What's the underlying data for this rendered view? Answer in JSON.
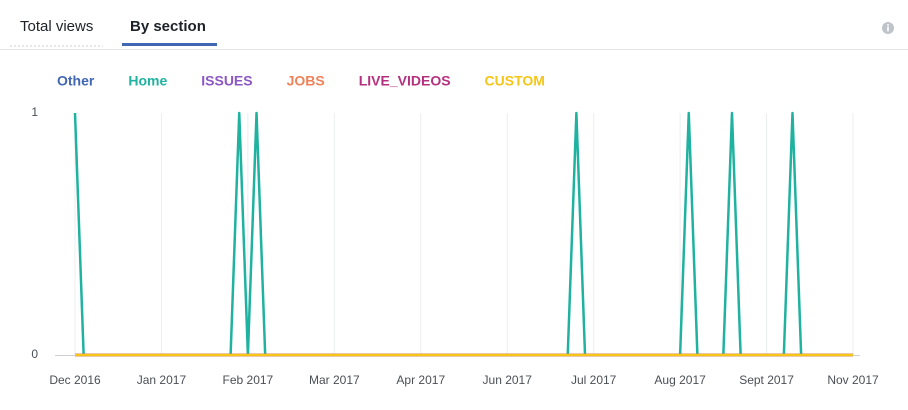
{
  "tabs": [
    "Total views",
    "By section"
  ],
  "chart_data": {
    "type": "line",
    "categories": [
      "Dec 2016",
      null,
      null,
      null,
      null,
      null,
      null,
      null,
      null,
      null,
      "Jan 2017",
      null,
      null,
      null,
      null,
      null,
      null,
      null,
      null,
      null,
      "Feb 2017",
      null,
      null,
      null,
      null,
      null,
      null,
      null,
      null,
      null,
      "Mar 2017",
      null,
      null,
      null,
      null,
      null,
      null,
      null,
      null,
      null,
      "Apr 2017",
      null,
      null,
      null,
      null,
      null,
      null,
      null,
      null,
      null,
      "Jun 2017",
      null,
      null,
      null,
      null,
      null,
      null,
      null,
      null,
      null,
      "Jul 2017",
      null,
      null,
      null,
      null,
      null,
      null,
      null,
      null,
      null,
      "Aug 2017",
      null,
      null,
      null,
      null,
      null,
      null,
      null,
      null,
      null,
      "Sept 2017",
      null,
      null,
      null,
      null,
      null,
      null,
      null,
      null,
      null,
      "Nov 2017"
    ],
    "series": [
      {
        "name": "Other",
        "color": "#4267b2",
        "values": [
          0,
          0,
          0,
          0,
          0,
          0,
          0,
          0,
          0,
          0,
          0,
          0,
          0,
          0,
          0,
          0,
          0,
          0,
          0,
          0,
          0,
          0,
          0,
          0,
          0,
          0,
          0,
          0,
          0,
          0,
          0,
          0,
          0,
          0,
          0,
          0,
          0,
          0,
          0,
          0,
          0,
          0,
          0,
          0,
          0,
          0,
          0,
          0,
          0,
          0,
          0,
          0,
          0,
          0,
          0,
          0,
          0,
          0,
          0,
          0,
          0,
          0,
          0,
          0,
          0,
          0,
          0,
          0,
          0,
          0,
          0,
          0,
          0,
          0,
          0,
          0,
          0,
          0,
          0,
          0,
          0,
          0,
          0,
          0,
          0,
          0,
          0,
          0,
          0,
          0,
          0
        ]
      },
      {
        "name": "Home",
        "color": "#20b2a0",
        "values": [
          1,
          0,
          0,
          0,
          0,
          0,
          0,
          0,
          0,
          0,
          0,
          0,
          0,
          0,
          0,
          0,
          0,
          0,
          0,
          1,
          0,
          1,
          0,
          0,
          0,
          0,
          0,
          0,
          0,
          0,
          0,
          0,
          0,
          0,
          0,
          0,
          0,
          0,
          0,
          0,
          0,
          0,
          0,
          0,
          0,
          0,
          0,
          0,
          0,
          0,
          0,
          0,
          0,
          0,
          0,
          0,
          0,
          0,
          1,
          0,
          0,
          0,
          0,
          0,
          0,
          0,
          0,
          0,
          0,
          0,
          0,
          1,
          0,
          0,
          0,
          0,
          1,
          0,
          0,
          0,
          0,
          0,
          0,
          1,
          0,
          0,
          0,
          0,
          0,
          0,
          0
        ]
      },
      {
        "name": "ISSUES",
        "color": "#8c57c4",
        "values": [
          0,
          0,
          0,
          0,
          0,
          0,
          0,
          0,
          0,
          0,
          0,
          0,
          0,
          0,
          0,
          0,
          0,
          0,
          0,
          0,
          0,
          0,
          0,
          0,
          0,
          0,
          0,
          0,
          0,
          0,
          0,
          0,
          0,
          0,
          0,
          0,
          0,
          0,
          0,
          0,
          0,
          0,
          0,
          0,
          0,
          0,
          0,
          0,
          0,
          0,
          0,
          0,
          0,
          0,
          0,
          0,
          0,
          0,
          0,
          0,
          0,
          0,
          0,
          0,
          0,
          0,
          0,
          0,
          0,
          0,
          0,
          0,
          0,
          0,
          0,
          0,
          0,
          0,
          0,
          0,
          0,
          0,
          0,
          0,
          0,
          0,
          0,
          0,
          0,
          0,
          0
        ]
      },
      {
        "name": "JOBS",
        "color": "#f0825a",
        "values": [
          0,
          0,
          0,
          0,
          0,
          0,
          0,
          0,
          0,
          0,
          0,
          0,
          0,
          0,
          0,
          0,
          0,
          0,
          0,
          0,
          0,
          0,
          0,
          0,
          0,
          0,
          0,
          0,
          0,
          0,
          0,
          0,
          0,
          0,
          0,
          0,
          0,
          0,
          0,
          0,
          0,
          0,
          0,
          0,
          0,
          0,
          0,
          0,
          0,
          0,
          0,
          0,
          0,
          0,
          0,
          0,
          0,
          0,
          0,
          0,
          0,
          0,
          0,
          0,
          0,
          0,
          0,
          0,
          0,
          0,
          0,
          0,
          0,
          0,
          0,
          0,
          0,
          0,
          0,
          0,
          0,
          0,
          0,
          0,
          0,
          0,
          0,
          0,
          0,
          0,
          0
        ]
      },
      {
        "name": "LIVE_VIDEOS",
        "color": "#b5317f",
        "values": [
          0,
          0,
          0,
          0,
          0,
          0,
          0,
          0,
          0,
          0,
          0,
          0,
          0,
          0,
          0,
          0,
          0,
          0,
          0,
          0,
          0,
          0,
          0,
          0,
          0,
          0,
          0,
          0,
          0,
          0,
          0,
          0,
          0,
          0,
          0,
          0,
          0,
          0,
          0,
          0,
          0,
          0,
          0,
          0,
          0,
          0,
          0,
          0,
          0,
          0,
          0,
          0,
          0,
          0,
          0,
          0,
          0,
          0,
          0,
          0,
          0,
          0,
          0,
          0,
          0,
          0,
          0,
          0,
          0,
          0,
          0,
          0,
          0,
          0,
          0,
          0,
          0,
          0,
          0,
          0,
          0,
          0,
          0,
          0,
          0,
          0,
          0,
          0,
          0,
          0,
          0
        ]
      },
      {
        "name": "CUSTOM",
        "color": "#f5c518",
        "values": [
          0,
          0,
          0,
          0,
          0,
          0,
          0,
          0,
          0,
          0,
          0,
          0,
          0,
          0,
          0,
          0,
          0,
          0,
          0,
          0,
          0,
          0,
          0,
          0,
          0,
          0,
          0,
          0,
          0,
          0,
          0,
          0,
          0,
          0,
          0,
          0,
          0,
          0,
          0,
          0,
          0,
          0,
          0,
          0,
          0,
          0,
          0,
          0,
          0,
          0,
          0,
          0,
          0,
          0,
          0,
          0,
          0,
          0,
          0,
          0,
          0,
          0,
          0,
          0,
          0,
          0,
          0,
          0,
          0,
          0,
          0,
          0,
          0,
          0,
          0,
          0,
          0,
          0,
          0,
          0,
          0,
          0,
          0,
          0,
          0,
          0,
          0,
          0,
          0,
          0,
          0
        ]
      }
    ],
    "ylim": [
      0,
      1
    ],
    "yticks": [
      0,
      1
    ],
    "grid": true
  }
}
